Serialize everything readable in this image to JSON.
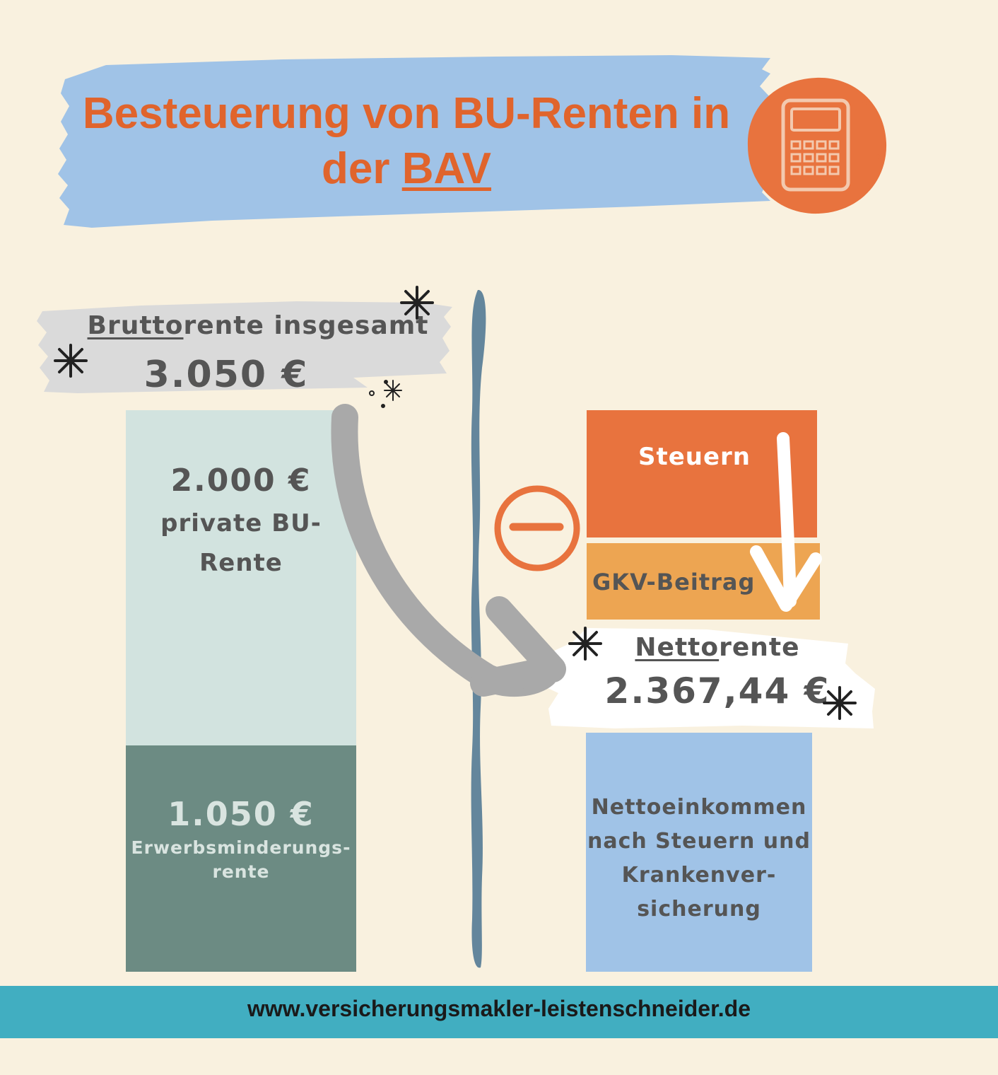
{
  "title": {
    "line1": "Besteuerung von BU-Renten in",
    "line2_prefix": "der ",
    "line2_underlined": "BAV"
  },
  "gross": {
    "label_underlined": "Brutto",
    "label_rest": "rente insgesamt",
    "value": "3.050 €"
  },
  "left_bars": {
    "private": {
      "value": "2.000 €",
      "label_line1": "private BU-",
      "label_line2": "Rente"
    },
    "erwerbsminderung": {
      "value": "1.050 €",
      "label_line1": "Erwerbsminderungs-",
      "label_line2": "rente"
    }
  },
  "right_bars": {
    "steuern": "Steuern",
    "gkv": "GKV-Beitrag",
    "net_desc": [
      "Nettoeinkommen",
      "nach Steuern und",
      "Krankenver-",
      "sicherung"
    ]
  },
  "net": {
    "label_underlined": "Netto",
    "label_rest": "rente",
    "value": "2.367,44 €"
  },
  "icons": {
    "calculator": "calculator-icon",
    "minus": "minus-circle-icon",
    "sparkle": "sparkle-icon",
    "arrow": "curved-arrow-icon"
  },
  "colors": {
    "orange": "#e8733e",
    "light_orange": "#eda552",
    "blue": "#a0c3e7",
    "mint": "#d2e3df",
    "sage": "#6c8b83",
    "teal": "#41aec1",
    "background": "#f9f1df"
  },
  "footer": {
    "url": "www.versicherungsmakler-leistenschneider.de"
  }
}
